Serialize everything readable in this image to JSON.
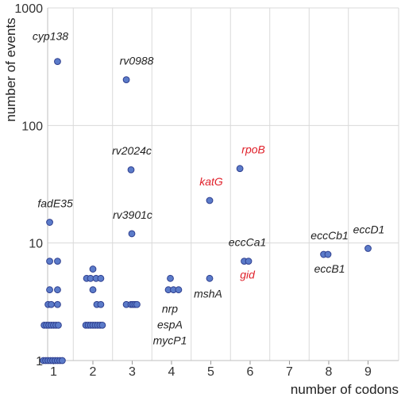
{
  "chart_data": {
    "type": "scatter",
    "title": "",
    "xlabel": "number of  codons",
    "ylabel": "number of events",
    "x_categories": [
      "1",
      "2",
      "3",
      "4",
      "5",
      "6",
      "7",
      "8",
      "9"
    ],
    "y_scale": "log",
    "ylim": [
      1,
      1000
    ],
    "y_ticks": [
      1,
      10,
      100,
      1000
    ],
    "y_tick_labels": [
      "1",
      "10",
      "100",
      "1000"
    ],
    "grid": true,
    "colors": {
      "point_fill": "#5b7bc9",
      "point_stroke": "#2f3f8f",
      "grid": "#d9d9d9",
      "label_default": "#222222",
      "label_highlight": "#e0202a"
    },
    "points": [
      {
        "x": 1.1,
        "y": 350
      },
      {
        "x": 0.9,
        "y": 15
      },
      {
        "x": 0.9,
        "y": 7
      },
      {
        "x": 1.1,
        "y": 7
      },
      {
        "x": 0.9,
        "y": 4
      },
      {
        "x": 1.1,
        "y": 4
      },
      {
        "x": 0.86,
        "y": 3
      },
      {
        "x": 0.94,
        "y": 3
      },
      {
        "x": 1.1,
        "y": 3
      },
      {
        "x": 0.76,
        "y": 2
      },
      {
        "x": 0.82,
        "y": 2
      },
      {
        "x": 0.88,
        "y": 2
      },
      {
        "x": 0.94,
        "y": 2
      },
      {
        "x": 1.0,
        "y": 2
      },
      {
        "x": 1.06,
        "y": 2
      },
      {
        "x": 1.12,
        "y": 2
      },
      {
        "x": 0.74,
        "y": 1
      },
      {
        "x": 0.8,
        "y": 1
      },
      {
        "x": 0.86,
        "y": 1
      },
      {
        "x": 0.92,
        "y": 1
      },
      {
        "x": 0.98,
        "y": 1
      },
      {
        "x": 1.04,
        "y": 1
      },
      {
        "x": 1.1,
        "y": 1
      },
      {
        "x": 1.16,
        "y": 1
      },
      {
        "x": 1.22,
        "y": 1
      },
      {
        "x": 2.0,
        "y": 6
      },
      {
        "x": 1.84,
        "y": 5
      },
      {
        "x": 1.94,
        "y": 5
      },
      {
        "x": 2.08,
        "y": 5
      },
      {
        "x": 2.2,
        "y": 5
      },
      {
        "x": 2.0,
        "y": 4
      },
      {
        "x": 2.1,
        "y": 3
      },
      {
        "x": 2.2,
        "y": 3
      },
      {
        "x": 1.82,
        "y": 2
      },
      {
        "x": 1.88,
        "y": 2
      },
      {
        "x": 1.94,
        "y": 2
      },
      {
        "x": 2.0,
        "y": 2
      },
      {
        "x": 2.06,
        "y": 2
      },
      {
        "x": 2.12,
        "y": 2
      },
      {
        "x": 2.18,
        "y": 2
      },
      {
        "x": 2.24,
        "y": 2
      },
      {
        "x": 2.85,
        "y": 245
      },
      {
        "x": 2.97,
        "y": 42
      },
      {
        "x": 2.99,
        "y": 12
      },
      {
        "x": 2.85,
        "y": 3
      },
      {
        "x": 2.97,
        "y": 3
      },
      {
        "x": 3.02,
        "y": 3
      },
      {
        "x": 3.07,
        "y": 3
      },
      {
        "x": 3.12,
        "y": 3
      },
      {
        "x": 3.97,
        "y": 5
      },
      {
        "x": 3.92,
        "y": 4
      },
      {
        "x": 4.05,
        "y": 4
      },
      {
        "x": 4.18,
        "y": 4
      },
      {
        "x": 4.97,
        "y": 23
      },
      {
        "x": 4.97,
        "y": 5
      },
      {
        "x": 5.74,
        "y": 43
      },
      {
        "x": 5.85,
        "y": 7
      },
      {
        "x": 5.96,
        "y": 7
      },
      {
        "x": 7.87,
        "y": 8
      },
      {
        "x": 7.98,
        "y": 8
      },
      {
        "x": 9.0,
        "y": 9
      }
    ],
    "annotations": [
      {
        "text": "cyp138",
        "x": 1.0,
        "y": 350,
        "highlight": false
      },
      {
        "text": "rv0988",
        "x": 2.87,
        "y": 245,
        "highlight": false
      },
      {
        "text": "rv2024c",
        "x": 2.97,
        "y": 42,
        "highlight": false
      },
      {
        "text": "fadE35",
        "x": 0.88,
        "y": 15,
        "highlight": false
      },
      {
        "text": "rv3901c",
        "x": 2.99,
        "y": 12,
        "highlight": false
      },
      {
        "text": "katG",
        "x": 4.97,
        "y": 23,
        "highlight": true
      },
      {
        "text": "rpoB",
        "x": 5.84,
        "y": 43,
        "highlight": true
      },
      {
        "text": "eccCa1",
        "x": 5.91,
        "y": 7,
        "highlight": false
      },
      {
        "text": "gid",
        "x": 5.91,
        "y": 7,
        "highlight": true
      },
      {
        "text": "eccCb1",
        "x": 7.92,
        "y": 8,
        "highlight": false
      },
      {
        "text": "eccB1",
        "x": 7.92,
        "y": 8,
        "highlight": false
      },
      {
        "text": "eccD1",
        "x": 9.0,
        "y": 9,
        "highlight": false
      },
      {
        "text": "nrp",
        "x": 4.04,
        "y": 4,
        "highlight": false
      },
      {
        "text": "espA",
        "x": 4.04,
        "y": 4,
        "highlight": false
      },
      {
        "text": "mycP1",
        "x": 4.04,
        "y": 4,
        "highlight": false
      },
      {
        "text": "mshA",
        "x": 4.97,
        "y": 5,
        "highlight": false
      }
    ]
  }
}
